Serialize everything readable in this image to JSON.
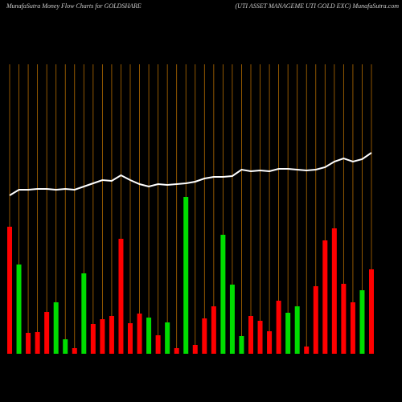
{
  "chart_data": {
    "type": "bar",
    "title": "MunafaSutra  Money Flow  Charts for GOLDSHARE",
    "subtitle": "(UTI ASSET MANAGEME UTI GOLD EXC) MunafaSutra.com",
    "categories": [
      null,
      null,
      null,
      null,
      null,
      null,
      null,
      null,
      null,
      null,
      null,
      null,
      null,
      null,
      null,
      null,
      null,
      null,
      null,
      null,
      null,
      null,
      null,
      null,
      null,
      null,
      null,
      null,
      null,
      null,
      null,
      null,
      null,
      null,
      null,
      null,
      null,
      null,
      null,
      null
    ],
    "ylim": [
      0,
      260
    ],
    "grid_color": "#b36b00",
    "series": [
      {
        "type": "bar",
        "values": [
          158,
          111,
          26,
          27,
          52,
          64,
          18,
          7,
          100,
          37,
          43,
          47,
          143,
          38,
          50,
          45,
          23,
          39,
          7,
          195,
          11,
          44,
          59,
          148,
          86,
          22,
          47,
          41,
          28,
          66,
          51,
          59,
          9,
          84,
          141,
          156,
          87,
          64,
          79,
          105
        ],
        "colors": [
          "#ff0000",
          "#00dd00",
          "#ff0000",
          "#ff0000",
          "#ff0000",
          "#00dd00",
          "#00dd00",
          "#ff0000",
          "#00dd00",
          "#ff0000",
          "#ff0000",
          "#ff0000",
          "#ff0000",
          "#ff0000",
          "#ff0000",
          "#00dd00",
          "#ff0000",
          "#00dd00",
          "#ff0000",
          "#00dd00",
          "#ff0000",
          "#ff0000",
          "#ff0000",
          "#00dd00",
          "#00dd00",
          "#00dd00",
          "#ff0000",
          "#ff0000",
          "#ff0000",
          "#ff0000",
          "#00dd00",
          "#00dd00",
          "#ff0000",
          "#ff0000",
          "#ff0000",
          "#ff0000",
          "#ff0000",
          "#ff0000",
          "#00dd00",
          "#ff0000"
        ]
      },
      {
        "type": "line",
        "color": "#ffffff",
        "values": [
          197,
          204,
          204,
          205,
          205,
          204,
          205,
          204,
          208,
          212,
          216,
          215,
          222,
          216,
          211,
          208,
          211,
          210,
          211,
          212,
          214,
          218,
          220,
          220,
          221,
          229,
          227,
          228,
          227,
          230,
          230,
          229,
          228,
          229,
          232,
          239,
          243,
          239,
          242,
          250
        ]
      }
    ]
  }
}
